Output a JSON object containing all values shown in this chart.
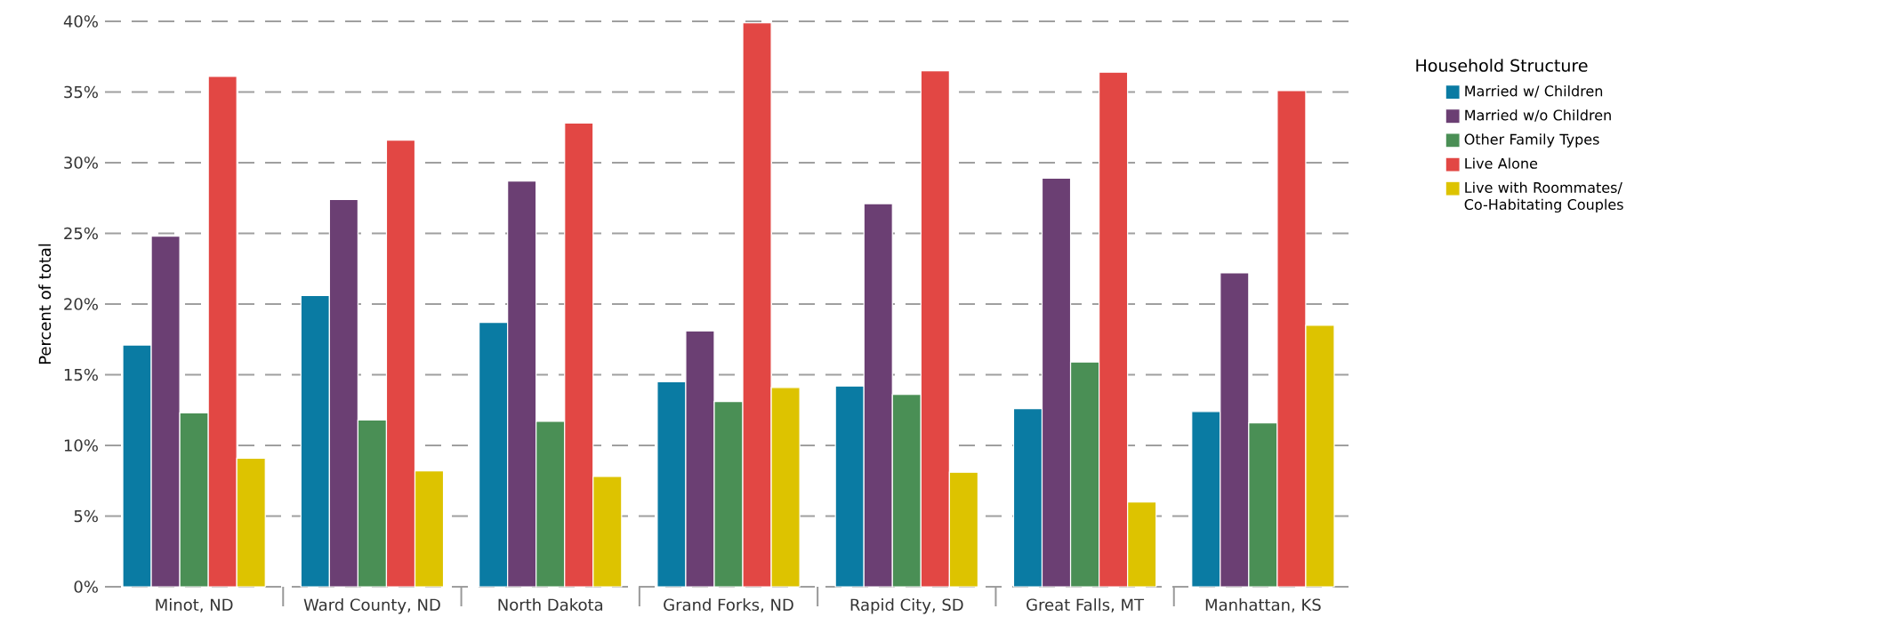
{
  "chart_data": {
    "type": "bar",
    "ylabel": "Percent of total",
    "legend_title": "Household Structure",
    "categories": [
      "Minot, ND",
      "Ward County, ND",
      "North Dakota",
      "Grand Forks, ND",
      "Rapid City, SD",
      "Great Falls, MT",
      "Manhattan, KS"
    ],
    "series": [
      {
        "name": "Married w/ Children",
        "color": "#0a7ba3",
        "values": [
          17.1,
          20.6,
          18.7,
          14.5,
          14.2,
          12.6,
          12.4
        ]
      },
      {
        "name": "Married w/o Children",
        "color": "#6b3f73",
        "values": [
          24.8,
          27.4,
          28.7,
          18.1,
          27.1,
          28.9,
          22.2
        ]
      },
      {
        "name": "Other Family Types",
        "color": "#4a8f55",
        "values": [
          12.3,
          11.8,
          11.7,
          13.1,
          13.6,
          15.9,
          11.6
        ]
      },
      {
        "name": "Live Alone",
        "color": "#e24744",
        "values": [
          36.1,
          31.6,
          32.8,
          39.9,
          36.5,
          36.4,
          35.1
        ]
      },
      {
        "name": "Live with Roommates/ Co-Habitating Couples",
        "color": "#ddc300",
        "values": [
          9.1,
          8.2,
          7.8,
          14.1,
          8.1,
          6.0,
          18.5
        ]
      }
    ],
    "ylim": [
      0,
      40
    ],
    "yticks": [
      {
        "value": 0,
        "label": "0%"
      },
      {
        "value": 5,
        "label": "5%"
      },
      {
        "value": 10,
        "label": "10%"
      },
      {
        "value": 15,
        "label": "15%"
      },
      {
        "value": 20,
        "label": "20%"
      },
      {
        "value": 25,
        "label": "25%"
      },
      {
        "value": 30,
        "label": "30%"
      },
      {
        "value": 35,
        "label": "35%"
      },
      {
        "value": 40,
        "label": "40%"
      }
    ],
    "grid": "y",
    "legend": "right"
  }
}
